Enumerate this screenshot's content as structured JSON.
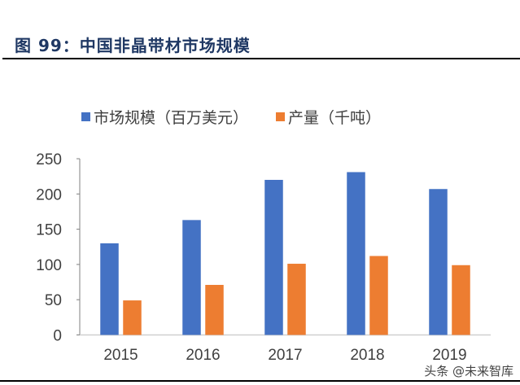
{
  "title": "图 99：中国非晶带材市场规模",
  "watermark": "头条 @未来智库",
  "chart_data": {
    "type": "bar",
    "categories": [
      "2015",
      "2016",
      "2017",
      "2018",
      "2019"
    ],
    "series": [
      {
        "name": "市场规模（百万美元）",
        "color": "#4472c4",
        "values": [
          130,
          163,
          220,
          231,
          207
        ]
      },
      {
        "name": "产量（千吨）",
        "color": "#ed7d31",
        "values": [
          49,
          71,
          101,
          112,
          99
        ]
      }
    ],
    "ylim": [
      0,
      250
    ],
    "yticks": [
      0,
      50,
      100,
      150,
      200,
      250
    ],
    "legend": "top",
    "grid": false
  }
}
